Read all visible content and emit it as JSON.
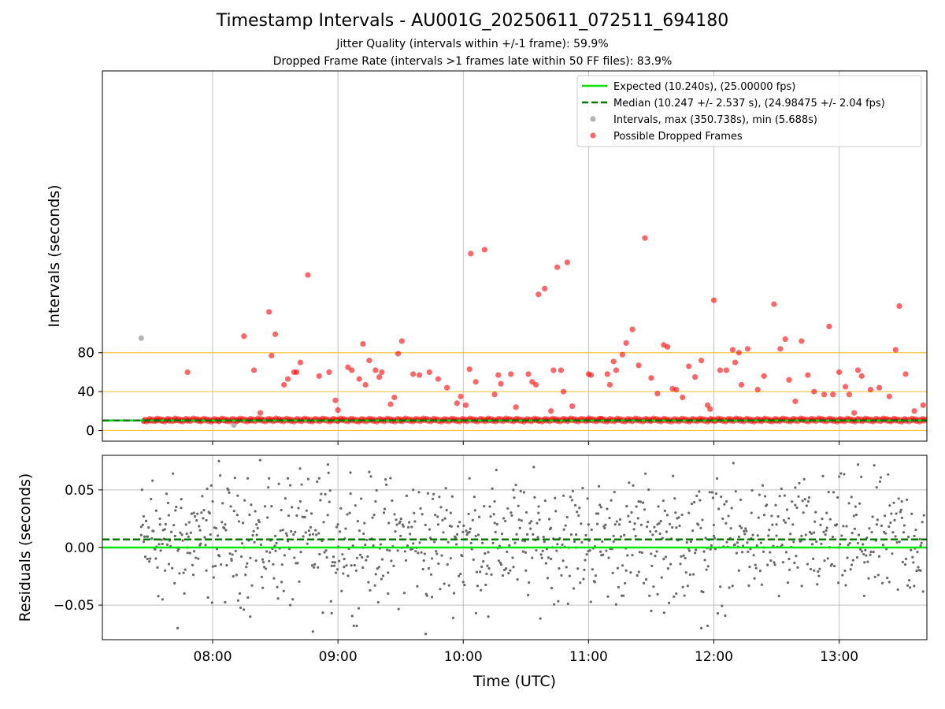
{
  "chart_data": [
    {
      "type": "scatter",
      "title": "Timestamp Intervals - AU001G_20250611_072511_694180",
      "subtitle_1": "Jitter Quality (intervals within +/-1 frame): 59.9%",
      "subtitle_2": "Dropped Frame Rate (intervals >1 frames late within 50 FF files): 83.9%",
      "xlabel": "",
      "ylabel": "Intervals (seconds)",
      "xlim": [
        7.12,
        13.7
      ],
      "ylim": [
        -11,
        370
      ],
      "yticks": [
        0,
        40,
        80
      ],
      "xticks_hours": [
        8,
        9,
        10,
        11,
        12,
        13
      ],
      "grid": true,
      "legend_position": "top-right",
      "reference_lines": [
        0,
        40,
        80
      ],
      "expected_interval": 10.24,
      "median_interval": 10.247,
      "legend": [
        "Expected (10.240s), (25.00000 fps)",
        "Median (10.247 +/- 2.537 s), (24.98475 +/- 2.04 fps)",
        "Intervals, max (350.738s), min (5.688s)",
        "Possible Dropped Frames"
      ],
      "series": [
        {
          "name": "Intervals",
          "color": "#808080",
          "points": [
            [
              7.43,
              95
            ],
            [
              7.45,
              10
            ],
            [
              7.5,
              10
            ],
            [
              7.55,
              10
            ],
            [
              7.6,
              10
            ],
            [
              7.65,
              10
            ],
            [
              7.7,
              10
            ],
            [
              7.75,
              10
            ],
            [
              7.8,
              10
            ],
            [
              7.9,
              10
            ],
            [
              8.0,
              10
            ],
            [
              8.05,
              10
            ],
            [
              8.1,
              10
            ],
            [
              8.17,
              5.7
            ],
            [
              8.2,
              10
            ],
            [
              8.3,
              10
            ],
            [
              8.5,
              10
            ],
            [
              9.0,
              10
            ],
            [
              9.5,
              10
            ],
            [
              10.2,
              10
            ],
            [
              10.6,
              10
            ],
            [
              11.0,
              10
            ],
            [
              11.5,
              10
            ],
            [
              12.0,
              10
            ],
            [
              12.5,
              10
            ],
            [
              13.0,
              10
            ],
            [
              13.4,
              10
            ]
          ]
        },
        {
          "name": "Possible Dropped Frames",
          "color": "#ff0000",
          "points": [
            [
              7.8,
              60
            ],
            [
              8.25,
              97
            ],
            [
              8.33,
              62
            ],
            [
              8.38,
              18
            ],
            [
              8.45,
              122
            ],
            [
              8.47,
              77
            ],
            [
              8.5,
              99
            ],
            [
              8.57,
              47
            ],
            [
              8.6,
              53
            ],
            [
              8.65,
              60
            ],
            [
              8.67,
              60
            ],
            [
              8.7,
              70
            ],
            [
              8.76,
              160
            ],
            [
              8.85,
              56
            ],
            [
              8.93,
              60
            ],
            [
              8.98,
              31
            ],
            [
              9.0,
              21
            ],
            [
              9.08,
              65
            ],
            [
              9.11,
              62
            ],
            [
              9.17,
              53
            ],
            [
              9.2,
              89
            ],
            [
              9.22,
              47
            ],
            [
              9.25,
              72
            ],
            [
              9.3,
              62
            ],
            [
              9.33,
              55
            ],
            [
              9.35,
              60
            ],
            [
              9.42,
              27
            ],
            [
              9.45,
              34
            ],
            [
              9.48,
              79
            ],
            [
              9.51,
              92
            ],
            [
              9.6,
              58
            ],
            [
              9.65,
              57
            ],
            [
              9.73,
              60
            ],
            [
              9.8,
              53
            ],
            [
              9.87,
              44
            ],
            [
              9.95,
              28
            ],
            [
              9.98,
              35
            ],
            [
              10.02,
              26
            ],
            [
              10.05,
              63
            ],
            [
              10.06,
              182
            ],
            [
              10.1,
              50
            ],
            [
              10.17,
              186
            ],
            [
              10.25,
              37
            ],
            [
              10.28,
              57
            ],
            [
              10.3,
              48
            ],
            [
              10.38,
              58
            ],
            [
              10.42,
              24
            ],
            [
              10.52,
              58
            ],
            [
              10.55,
              50
            ],
            [
              10.58,
              47
            ],
            [
              10.6,
              140
            ],
            [
              10.65,
              146
            ],
            [
              10.7,
              20
            ],
            [
              10.72,
              62
            ],
            [
              10.75,
              168
            ],
            [
              10.78,
              62
            ],
            [
              10.8,
              40
            ],
            [
              10.83,
              173
            ],
            [
              10.87,
              25
            ],
            [
              11.0,
              58
            ],
            [
              11.02,
              57
            ],
            [
              11.1,
              12
            ],
            [
              11.15,
              58
            ],
            [
              11.17,
              47
            ],
            [
              11.2,
              71
            ],
            [
              11.22,
              62
            ],
            [
              11.27,
              78
            ],
            [
              11.3,
              90
            ],
            [
              11.35,
              104
            ],
            [
              11.4,
              67
            ],
            [
              11.45,
              198
            ],
            [
              11.5,
              54
            ],
            [
              11.55,
              38
            ],
            [
              11.6,
              88
            ],
            [
              11.63,
              86
            ],
            [
              11.67,
              43
            ],
            [
              11.7,
              42
            ],
            [
              11.75,
              34
            ],
            [
              11.8,
              66
            ],
            [
              11.85,
              55
            ],
            [
              11.9,
              72
            ],
            [
              11.95,
              26
            ],
            [
              11.97,
              22
            ],
            [
              12.0,
              134
            ],
            [
              12.05,
              62
            ],
            [
              12.1,
              62
            ],
            [
              12.15,
              83
            ],
            [
              12.17,
              70
            ],
            [
              12.2,
              80
            ],
            [
              12.22,
              47
            ],
            [
              12.27,
              84
            ],
            [
              12.35,
              42
            ],
            [
              12.4,
              56
            ],
            [
              12.48,
              130
            ],
            [
              12.53,
              84
            ],
            [
              12.57,
              94
            ],
            [
              12.6,
              52
            ],
            [
              12.65,
              30
            ],
            [
              12.7,
              92
            ],
            [
              12.75,
              57
            ],
            [
              12.8,
              40
            ],
            [
              12.88,
              37
            ],
            [
              12.92,
              107
            ],
            [
              12.95,
              37
            ],
            [
              13.0,
              60
            ],
            [
              13.05,
              45
            ],
            [
              13.08,
              37
            ],
            [
              13.12,
              18
            ],
            [
              13.15,
              62
            ],
            [
              13.18,
              56
            ],
            [
              13.25,
              42
            ],
            [
              13.32,
              44
            ],
            [
              13.4,
              35
            ],
            [
              13.45,
              83
            ],
            [
              13.48,
              128
            ],
            [
              13.53,
              58
            ],
            [
              13.6,
              20
            ],
            [
              13.67,
              26
            ]
          ]
        }
      ]
    },
    {
      "type": "scatter",
      "xlabel": "Time (UTC)",
      "ylabel": "Residuals (seconds)",
      "xlim": [
        7.12,
        13.7
      ],
      "ylim": [
        -0.08,
        0.08
      ],
      "yticks": [
        -0.05,
        0.0,
        0.05
      ],
      "ytick_labels": [
        "−0.05",
        "0.00",
        "0.05"
      ],
      "xtick_labels": [
        "08:00",
        "09:00",
        "10:00",
        "11:00",
        "12:00",
        "13:00"
      ],
      "grid": true,
      "expected_residual": 0.0,
      "median_residual": 0.007,
      "points_color": "#696969",
      "points": [
        [
          7.43,
          0.018
        ],
        [
          7.45,
          0.005
        ],
        [
          7.48,
          -0.01
        ],
        [
          7.52,
          0.058
        ],
        [
          7.55,
          0.032
        ],
        [
          7.58,
          0.02
        ],
        [
          7.6,
          -0.045
        ],
        [
          7.62,
          -0.02
        ],
        [
          7.65,
          0.028
        ],
        [
          7.7,
          0.01
        ],
        [
          7.72,
          -0.07
        ],
        [
          7.75,
          0.042
        ],
        [
          7.8,
          0.0
        ],
        [
          7.85,
          0.03
        ],
        [
          7.9,
          0.015
        ],
        [
          7.95,
          -0.02
        ],
        [
          8.0,
          0.04
        ],
        [
          8.05,
          0.075
        ],
        [
          8.1,
          0.02
        ],
        [
          8.15,
          -0.01
        ],
        [
          8.2,
          0.045
        ],
        [
          8.25,
          0.0
        ],
        [
          8.28,
          0.06
        ],
        [
          8.3,
          -0.06
        ],
        [
          8.35,
          0.02
        ],
        [
          8.4,
          -0.035
        ],
        [
          8.45,
          0.06
        ],
        [
          8.5,
          0.01
        ],
        [
          8.55,
          -0.03
        ],
        [
          8.6,
          0.06
        ],
        [
          8.62,
          -0.05
        ],
        [
          8.7,
          0.04
        ],
        [
          8.8,
          -0.073
        ],
        [
          8.85,
          0.06
        ],
        [
          8.92,
          0.072
        ],
        [
          8.95,
          -0.057
        ],
        [
          9.0,
          0.02
        ],
        [
          9.05,
          -0.01
        ],
        [
          9.1,
          0.065
        ],
        [
          9.15,
          -0.068
        ],
        [
          9.2,
          0.0
        ],
        [
          9.3,
          0.04
        ],
        [
          9.4,
          -0.04
        ],
        [
          9.5,
          0.01
        ],
        [
          9.6,
          0.05
        ],
        [
          9.7,
          -0.075
        ],
        [
          9.75,
          -0.043
        ],
        [
          9.8,
          0.02
        ],
        [
          9.9,
          0.03
        ],
        [
          10.0,
          -0.03
        ],
        [
          10.05,
          0.06
        ],
        [
          10.1,
          0.01
        ],
        [
          10.2,
          -0.06
        ],
        [
          10.25,
          0.04
        ],
        [
          10.3,
          0.0
        ],
        [
          10.4,
          0.05
        ],
        [
          10.5,
          -0.02
        ],
        [
          10.6,
          0.03
        ],
        [
          10.7,
          -0.01
        ],
        [
          10.8,
          0.045
        ],
        [
          10.9,
          0.0
        ],
        [
          11.0,
          0.02
        ],
        [
          11.05,
          -0.03
        ],
        [
          11.1,
          0.035
        ],
        [
          11.2,
          0.01
        ],
        [
          11.3,
          -0.02
        ],
        [
          11.4,
          0.04
        ],
        [
          11.5,
          -0.055
        ],
        [
          11.55,
          0.02
        ],
        [
          11.6,
          -0.01
        ],
        [
          11.7,
          -0.04
        ],
        [
          11.8,
          0.03
        ],
        [
          11.9,
          -0.07
        ],
        [
          11.95,
          -0.068
        ],
        [
          12.0,
          0.01
        ],
        [
          12.1,
          0.04
        ],
        [
          12.2,
          -0.02
        ],
        [
          12.3,
          0.03
        ],
        [
          12.4,
          0.0
        ],
        [
          12.5,
          0.02
        ],
        [
          12.6,
          -0.01
        ],
        [
          12.65,
          0.052
        ],
        [
          12.7,
          0.01
        ],
        [
          12.8,
          -0.02
        ],
        [
          12.9,
          0.03
        ],
        [
          13.0,
          0.0
        ],
        [
          13.1,
          -0.015
        ],
        [
          13.15,
          0.072
        ],
        [
          13.2,
          -0.042
        ],
        [
          13.3,
          0.02
        ],
        [
          13.4,
          -0.03
        ],
        [
          13.5,
          0.04
        ],
        [
          13.6,
          0.01
        ],
        [
          13.65,
          -0.02
        ]
      ]
    }
  ]
}
